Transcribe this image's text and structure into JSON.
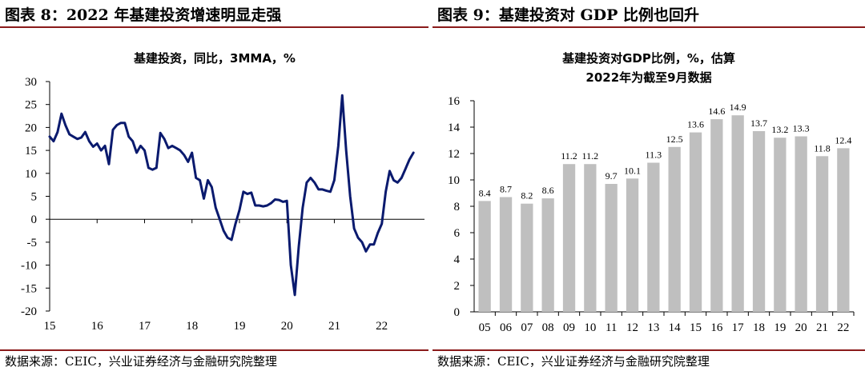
{
  "left": {
    "fig_title": "图表 8：2022 年基建投资增速明显走强",
    "source": "数据来源：CEIC，兴业证券经济与金融研究院整理",
    "line_color": "#0a1a6e",
    "chart_data": {
      "type": "line",
      "title": "基建投资，同比，3MMA，%",
      "ylim": [
        -20,
        30
      ],
      "yticks": [
        "30",
        "25",
        "20",
        "15",
        "10",
        "5",
        "0",
        "-5",
        "-10",
        "-15",
        "-20"
      ],
      "xticks": [
        "15",
        "16",
        "17",
        "18",
        "19",
        "20",
        "21",
        "22"
      ],
      "x_start": 2015.0,
      "x_step": 0.08333,
      "values": [
        18.0,
        17.0,
        19.0,
        23.0,
        20.5,
        18.5,
        18.0,
        17.5,
        17.8,
        19.0,
        17.0,
        15.8,
        16.5,
        15.0,
        16.0,
        12.0,
        19.5,
        20.5,
        21.0,
        21.0,
        18.0,
        17.0,
        14.5,
        16.0,
        15.0,
        11.2,
        10.8,
        11.2,
        18.8,
        17.5,
        15.5,
        16.0,
        15.5,
        15.0,
        14.0,
        12.5,
        14.5,
        9.0,
        8.5,
        4.5,
        8.5,
        7.0,
        2.5,
        0.0,
        -2.5,
        -4.0,
        -4.5,
        -1.0,
        2.0,
        6.0,
        5.5,
        5.8,
        3.0,
        3.0,
        2.8,
        3.0,
        3.5,
        4.3,
        4.2,
        3.8,
        4.0,
        -10.0,
        -16.5,
        -6.0,
        2.5,
        8.0,
        9.0,
        8.0,
        6.5,
        6.5,
        6.2,
        6.0,
        8.5,
        16.0,
        27.0,
        15.0,
        5.0,
        -2.0,
        -4.0,
        -5.0,
        -7.0,
        -5.5,
        -5.5,
        -3.0,
        -1.0,
        6.0,
        10.5,
        8.5,
        8.0,
        9.0,
        11.0,
        13.0,
        14.5
      ]
    }
  },
  "right": {
    "fig_title": "图表 9：基建投资对 GDP 比例也回升",
    "source": "数据来源：CEIC，兴业证券经济与金融研究院整理",
    "bar_color": "#bfbfbf",
    "chart_data": {
      "type": "bar",
      "title": "基建投资对GDP比例，%，估算",
      "subtitle": "2022年为截至9月数据",
      "ylim": [
        0,
        16
      ],
      "yticks": [
        "0",
        "2",
        "4",
        "6",
        "8",
        "10",
        "12",
        "14",
        "16"
      ],
      "categories": [
        "05",
        "06",
        "07",
        "08",
        "09",
        "10",
        "11",
        "12",
        "13",
        "14",
        "15",
        "16",
        "17",
        "18",
        "19",
        "20",
        "21",
        "22"
      ],
      "values": [
        8.4,
        8.7,
        8.2,
        8.6,
        11.2,
        11.2,
        9.7,
        10.1,
        11.3,
        12.5,
        13.6,
        14.6,
        14.9,
        13.7,
        13.2,
        13.3,
        11.8,
        12.4
      ],
      "labels": [
        "8.4",
        "8.7",
        "8.2",
        "8.6",
        "11.2",
        "11.2",
        "9.7",
        "10.1",
        "11.3",
        "12.5",
        "13.6",
        "14.6",
        "14.9",
        "13.7",
        "13.2",
        "13.3",
        "11.8",
        "12.4"
      ]
    }
  }
}
